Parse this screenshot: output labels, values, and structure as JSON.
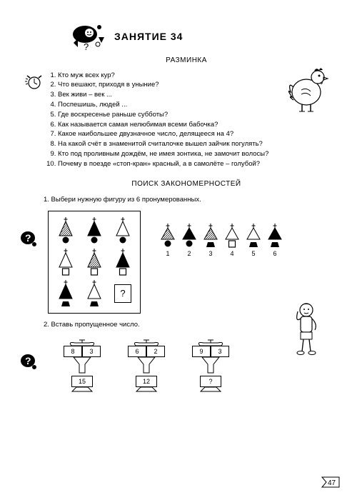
{
  "title": "ЗАНЯТИЕ  34",
  "warmup_title": "РАЗМИНКА",
  "questions": [
    "Кто муж всех кур?",
    "Что вешают, приходя в уныние?",
    "Век живи – век ...",
    "Поспешишь, людей ...",
    "Где воскресенье раньше субботы?",
    "Как называется самая нелюбимая всеми бабочка?",
    "Какое наибольшее двузначное число, делящееся на 4?",
    "На какой счёт в знаменитой считалочке вышел зайчик погулять?",
    "Кто под проливным дождём, не имея зонтика, не замочит волосы?",
    "Почему в поезде «стоп-кран» красный, а в самолёте – голубой?"
  ],
  "section2_title": "ПОИСК  ЗАКОНОМЕРНОСТЕЙ",
  "task1": "1. Выбери нужную фигуру из 6 пронумерованных.",
  "task2": "2. Вставь пропущенное число.",
  "grid": [
    {
      "fill": "hatch",
      "base": "circle"
    },
    {
      "fill": "solid",
      "base": "circle"
    },
    {
      "fill": "outline",
      "base": "circle"
    },
    {
      "fill": "outline",
      "base": "square"
    },
    {
      "fill": "hatch",
      "base": "square"
    },
    {
      "fill": "solid",
      "base": "square"
    },
    {
      "fill": "solid",
      "base": "trap"
    },
    {
      "fill": "outline",
      "base": "trap"
    },
    {
      "fill": "qmark",
      "base": "none"
    }
  ],
  "answers": [
    {
      "fill": "hatch",
      "base": "circle",
      "n": "1"
    },
    {
      "fill": "solid",
      "base": "circle",
      "n": "2"
    },
    {
      "fill": "hatch",
      "base": "trap",
      "n": "3"
    },
    {
      "fill": "outline",
      "base": "square",
      "n": "4"
    },
    {
      "fill": "outline",
      "base": "trap",
      "n": "5"
    },
    {
      "fill": "solid",
      "base": "trap",
      "n": "6"
    }
  ],
  "anvils": [
    {
      "a": "8",
      "b": "3",
      "r": "15"
    },
    {
      "a": "6",
      "b": "2",
      "r": "12"
    },
    {
      "a": "9",
      "b": "3",
      "r": "?"
    }
  ],
  "page_number": "47",
  "colors": {
    "text": "#000000",
    "bg": "#ffffff"
  }
}
